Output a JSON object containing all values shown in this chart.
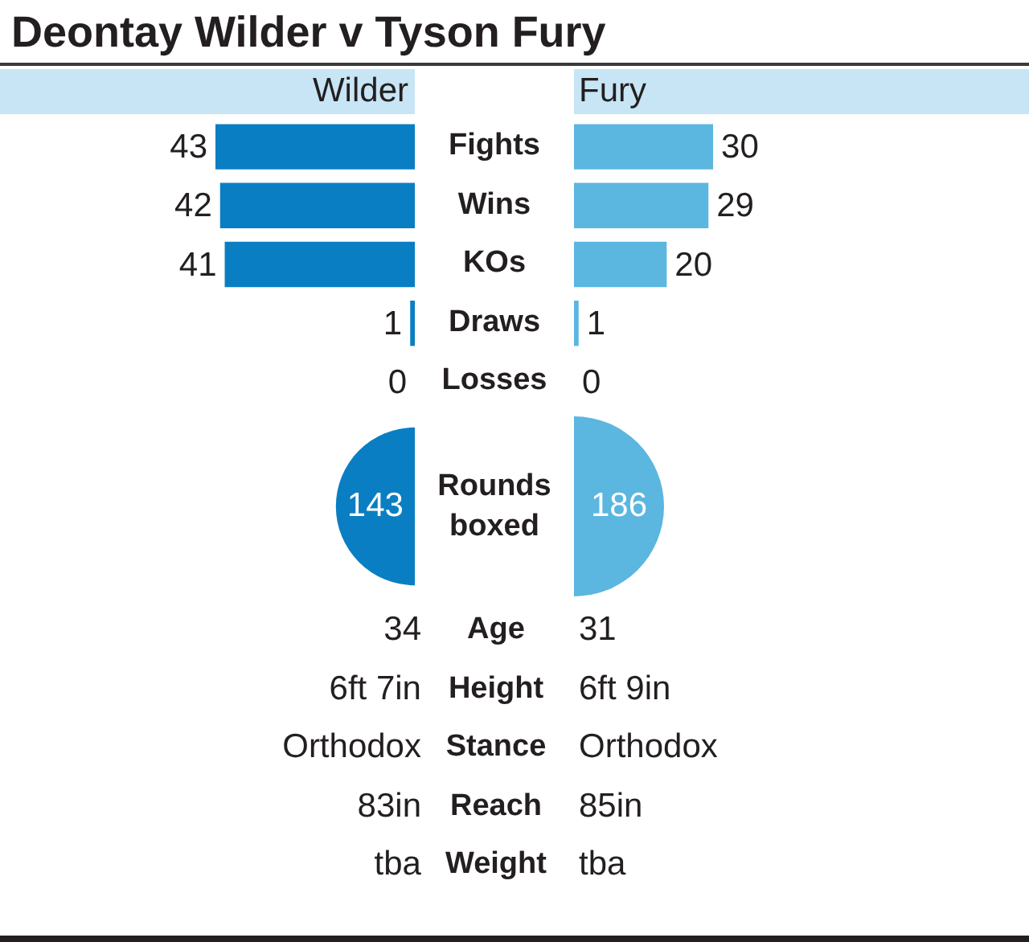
{
  "chart_data": [
    {
      "type": "bar",
      "title": "Deontay Wilder v Tyson Fury",
      "orientation": "horizontal",
      "categories": [
        "Fights",
        "Wins",
        "KOs",
        "Draws",
        "Losses"
      ],
      "series": [
        {
          "name": "Wilder",
          "color": "#0a7ec2",
          "values": [
            43,
            42,
            41,
            1,
            0
          ]
        }
      ],
      "data_labels": true,
      "legend": "top"
    },
    {
      "type": "bar",
      "orientation": "horizontal",
      "categories": [
        null,
        null,
        null,
        null,
        null
      ],
      "series": [
        {
          "name": "Fury",
          "color": "#5bb6e0",
          "values": [
            30,
            29,
            20,
            1,
            0
          ]
        }
      ],
      "data_labels": true,
      "legend": "top"
    },
    {
      "type": "other",
      "categories": [
        "Rounds boxed"
      ],
      "series": [
        {
          "color": "#0a7ec2",
          "values": [
            143
          ]
        },
        {
          "color": "#5bb6e0",
          "values": [
            186
          ]
        }
      ],
      "data_labels": true
    },
    {
      "type": "other",
      "categories": [
        "Age",
        "Height",
        "Stance",
        "Reach",
        "Weight"
      ],
      "series": [
        {
          "values": [
            34,
            null,
            null,
            83,
            null
          ],
          "value_labels": [
            "34",
            "6ft 7in",
            "Orthodox",
            "83in",
            "tba"
          ]
        },
        {
          "values": [
            31,
            null,
            null,
            85,
            null
          ],
          "value_labels": [
            "31",
            "6ft 9in",
            "Orthodox",
            "85in",
            "tba"
          ]
        }
      ]
    }
  ]
}
